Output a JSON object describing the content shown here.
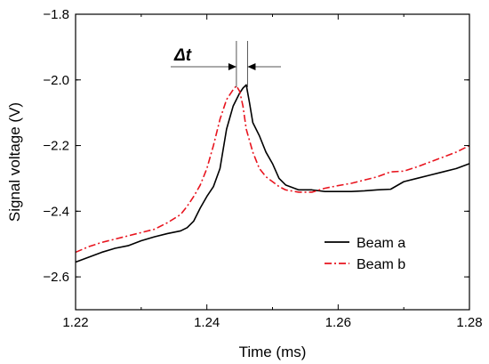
{
  "chart_data": {
    "type": "line",
    "title": "",
    "xlabel": "Time (ms)",
    "ylabel": "Signal voltage (V)",
    "xlim": [
      1.22,
      1.28
    ],
    "ylim": [
      -2.7,
      -1.8
    ],
    "xticks": [
      "1.22",
      "1.24",
      "1.26",
      "1.28"
    ],
    "yticks": [
      "−1.8",
      "−2.0",
      "−2.2",
      "−2.4",
      "−2.6"
    ],
    "legend_position": "bottom-right",
    "annotation": {
      "label": "Δt",
      "x_start": 1.2445,
      "x_end": 1.2462,
      "y": -1.96
    },
    "series": [
      {
        "name": "Beam a",
        "color": "#000000",
        "style": "solid",
        "x": [
          1.22,
          1.222,
          1.224,
          1.226,
          1.228,
          1.23,
          1.232,
          1.234,
          1.236,
          1.237,
          1.238,
          1.239,
          1.24,
          1.241,
          1.242,
          1.243,
          1.244,
          1.245,
          1.2455,
          1.246,
          1.2465,
          1.247,
          1.248,
          1.249,
          1.25,
          1.251,
          1.252,
          1.254,
          1.256,
          1.258,
          1.26,
          1.262,
          1.264,
          1.266,
          1.268,
          1.27,
          1.272,
          1.274,
          1.276,
          1.278,
          1.28
        ],
        "y": [
          -2.555,
          -2.54,
          -2.525,
          -2.513,
          -2.505,
          -2.49,
          -2.478,
          -2.468,
          -2.46,
          -2.45,
          -2.43,
          -2.39,
          -2.355,
          -2.325,
          -2.27,
          -2.15,
          -2.08,
          -2.04,
          -2.025,
          -2.015,
          -2.07,
          -2.13,
          -2.17,
          -2.22,
          -2.255,
          -2.3,
          -2.32,
          -2.335,
          -2.335,
          -2.34,
          -2.34,
          -2.34,
          -2.338,
          -2.335,
          -2.333,
          -2.31,
          -2.3,
          -2.29,
          -2.28,
          -2.27,
          -2.255
        ]
      },
      {
        "name": "Beam b",
        "color": "#e8141e",
        "style": "dashdot",
        "x": [
          1.22,
          1.222,
          1.224,
          1.226,
          1.228,
          1.23,
          1.232,
          1.234,
          1.236,
          1.237,
          1.238,
          1.239,
          1.24,
          1.241,
          1.242,
          1.243,
          1.244,
          1.2445,
          1.245,
          1.2455,
          1.246,
          1.247,
          1.248,
          1.249,
          1.25,
          1.251,
          1.252,
          1.254,
          1.256,
          1.258,
          1.26,
          1.262,
          1.264,
          1.266,
          1.268,
          1.27,
          1.272,
          1.274,
          1.276,
          1.278,
          1.28
        ],
        "y": [
          -2.525,
          -2.508,
          -2.495,
          -2.485,
          -2.475,
          -2.465,
          -2.455,
          -2.435,
          -2.41,
          -2.385,
          -2.355,
          -2.32,
          -2.27,
          -2.2,
          -2.12,
          -2.06,
          -2.03,
          -2.018,
          -2.035,
          -2.08,
          -2.15,
          -2.22,
          -2.27,
          -2.295,
          -2.31,
          -2.325,
          -2.335,
          -2.342,
          -2.342,
          -2.33,
          -2.322,
          -2.315,
          -2.305,
          -2.295,
          -2.28,
          -2.278,
          -2.265,
          -2.25,
          -2.235,
          -2.22,
          -2.2
        ]
      }
    ]
  }
}
